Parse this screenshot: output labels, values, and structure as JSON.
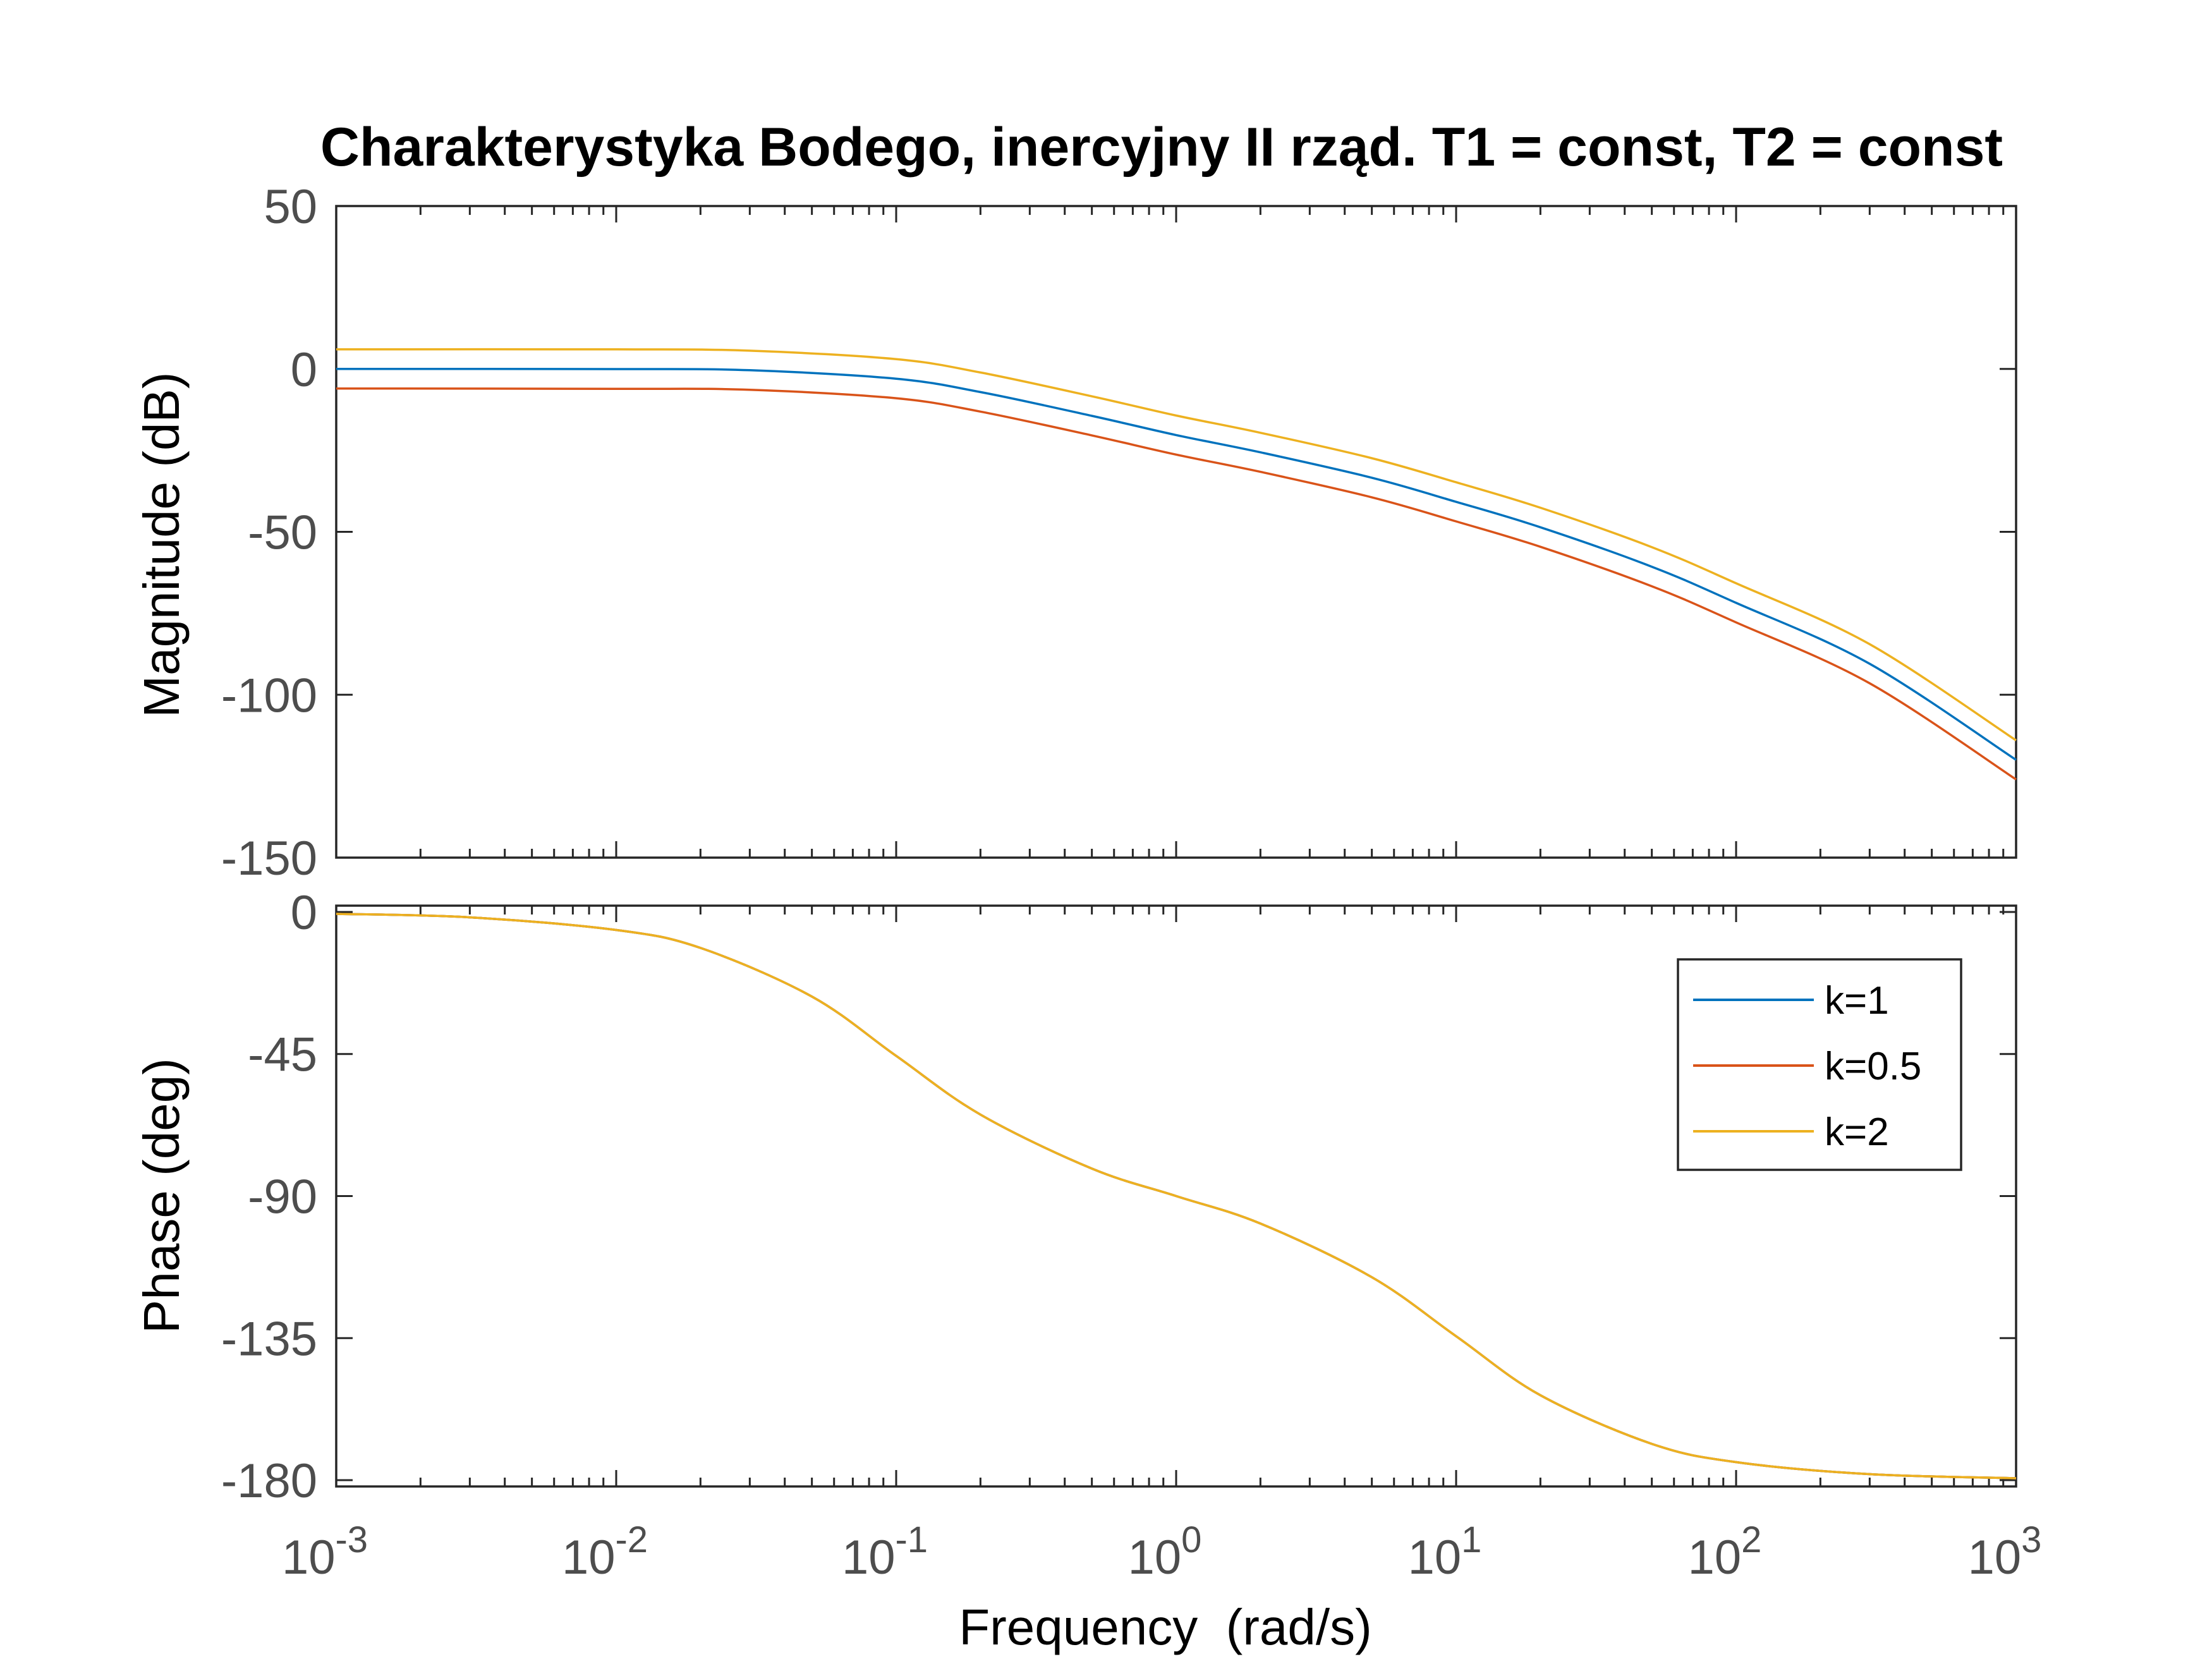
{
  "chart_data": [
    {
      "type": "line",
      "title": "Charakterystyka Bodego, inercyjny II rząd. T1 = const, T2 = const",
      "xlabel": "",
      "ylabel": "Magnitude (dB)",
      "xscale": "log",
      "xlim": [
        0.001,
        1000
      ],
      "ylim": [
        -150,
        50
      ],
      "yticks": [
        "50",
        "0",
        "-50",
        "-100",
        "-150"
      ],
      "grid": false,
      "x": [
        0.001,
        0.01,
        0.03,
        0.1,
        0.2,
        0.5,
        1,
        2,
        5,
        10,
        20,
        50,
        100,
        300,
        1000
      ],
      "series": [
        {
          "name": "k=1",
          "color": "#0072BD",
          "values": [
            0,
            -0.04,
            -0.4,
            -3.0,
            -7.1,
            -14.4,
            -20.3,
            -25.6,
            -33.4,
            -40.8,
            -48.6,
            -60.7,
            -71.8,
            -90.5,
            -120.0
          ]
        },
        {
          "name": "k=0.5",
          "color": "#D95319",
          "values": [
            -6.0,
            -6.1,
            -6.4,
            -9.0,
            -13.1,
            -20.4,
            -26.3,
            -31.6,
            -39.4,
            -46.8,
            -54.6,
            -66.7,
            -77.8,
            -96.5,
            -126.0
          ]
        },
        {
          "name": "k=2",
          "color": "#EDB120",
          "values": [
            6.0,
            6.0,
            5.6,
            3.0,
            -1.1,
            -8.4,
            -14.3,
            -19.6,
            -27.4,
            -34.8,
            -42.6,
            -54.7,
            -65.8,
            -84.5,
            -114.0
          ]
        }
      ]
    },
    {
      "type": "line",
      "title": "",
      "xlabel": "Frequency  (rad/s)",
      "ylabel": "Phase (deg)",
      "xscale": "log",
      "xlim": [
        0.001,
        1000
      ],
      "ylim": [
        -182,
        2
      ],
      "yticks": [
        "0",
        "-45",
        "-90",
        "-135",
        "-180"
      ],
      "xticks": [
        {
          "base": "10",
          "exp": "-3"
        },
        {
          "base": "10",
          "exp": "-2"
        },
        {
          "base": "10",
          "exp": "-1"
        },
        {
          "base": "10",
          "exp": "0"
        },
        {
          "base": "10",
          "exp": "1"
        },
        {
          "base": "10",
          "exp": "2"
        },
        {
          "base": "10",
          "exp": "3"
        }
      ],
      "grid": false,
      "legend_position": "top-right",
      "x": [
        0.001,
        0.003,
        0.01,
        0.02,
        0.05,
        0.1,
        0.2,
        0.5,
        1,
        2,
        5,
        10,
        20,
        50,
        100,
        300,
        1000
      ],
      "series": [
        {
          "name": "k=1",
          "color": "#0072BD",
          "values": [
            -0.6,
            -1.7,
            -5.7,
            -11.4,
            -26.8,
            -45.6,
            -64.2,
            -81.3,
            -90.0,
            -98.7,
            -115.7,
            -134.4,
            -153.1,
            -168.5,
            -174.3,
            -178.1,
            -179.4
          ]
        },
        {
          "name": "k=0.5",
          "color": "#D95319",
          "values": [
            -0.6,
            -1.7,
            -5.7,
            -11.4,
            -26.8,
            -45.6,
            -64.2,
            -81.3,
            -90.0,
            -98.7,
            -115.7,
            -134.4,
            -153.1,
            -168.5,
            -174.3,
            -178.1,
            -179.4
          ]
        },
        {
          "name": "k=2",
          "color": "#EDB120",
          "values": [
            -0.6,
            -1.7,
            -5.7,
            -11.4,
            -26.8,
            -45.6,
            -64.2,
            -81.3,
            -90.0,
            -98.7,
            -115.7,
            -134.4,
            -153.1,
            -168.5,
            -174.3,
            -178.1,
            -179.4
          ]
        }
      ]
    }
  ]
}
